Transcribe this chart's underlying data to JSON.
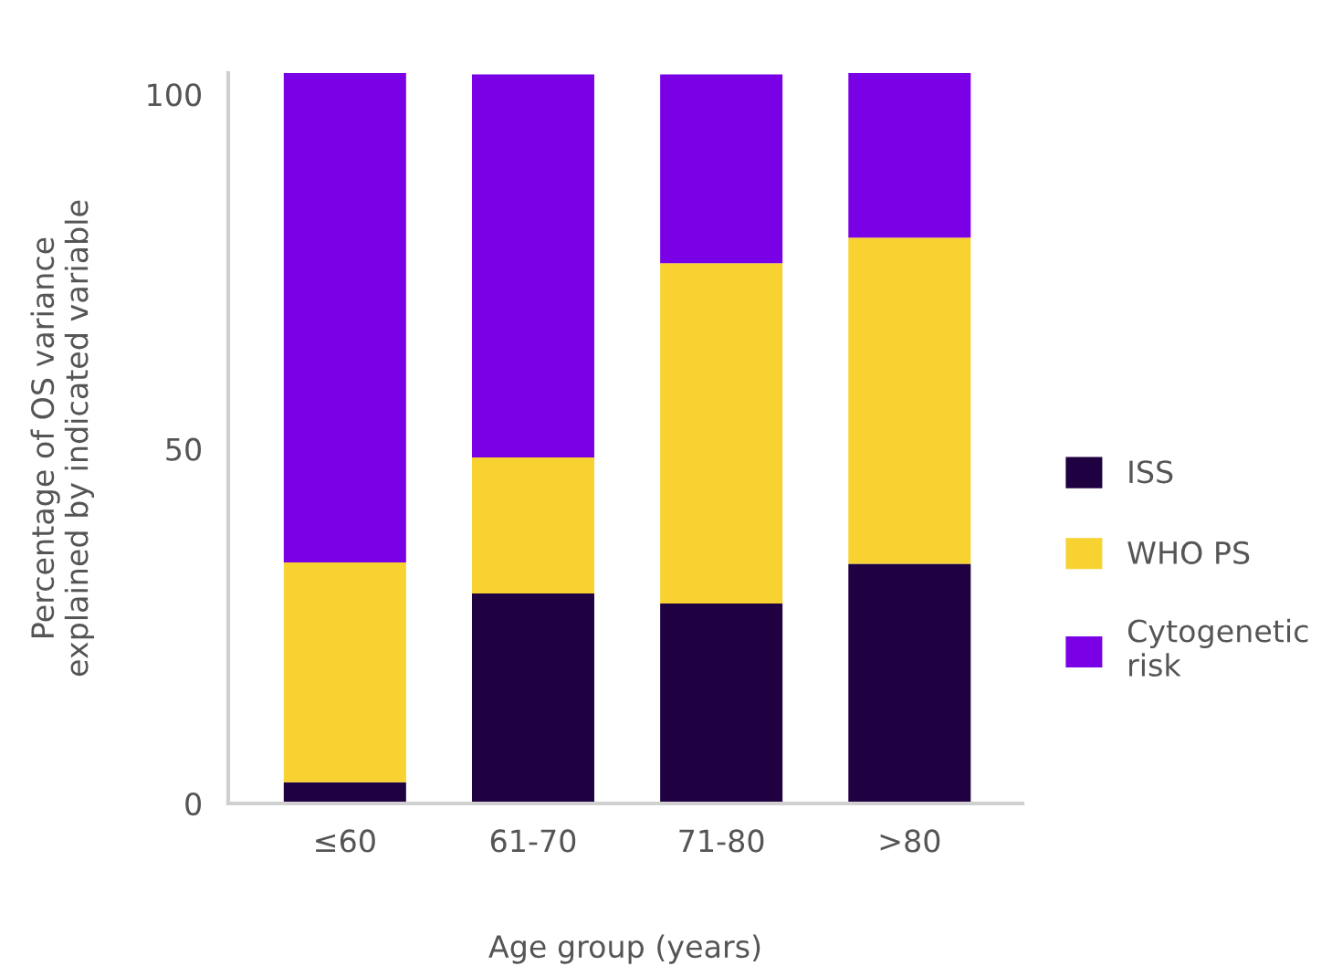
{
  "chart_data": {
    "type": "bar",
    "stacked": true,
    "xlabel": "Age group (years)",
    "ylabel": "Percentage of OS variance\nexplained by indicated variable",
    "categories": [
      "≤60",
      "61-70",
      "71-80",
      ">80"
    ],
    "series": [
      {
        "name": "ISS",
        "color": "#1f0040",
        "values": [
          3,
          29.6,
          28.2,
          33.8
        ]
      },
      {
        "name": "WHO PS",
        "color": "#f8d231",
        "values": [
          31,
          19.2,
          48,
          46
        ]
      },
      {
        "name": "Cytogenetic\nrisk",
        "color": "#7a00e6",
        "values": [
          69,
          54,
          26.6,
          23.3
        ]
      }
    ],
    "ylim": [
      0,
      103
    ],
    "yticks": [
      0,
      50,
      100
    ],
    "grid": false,
    "legend": "right"
  }
}
